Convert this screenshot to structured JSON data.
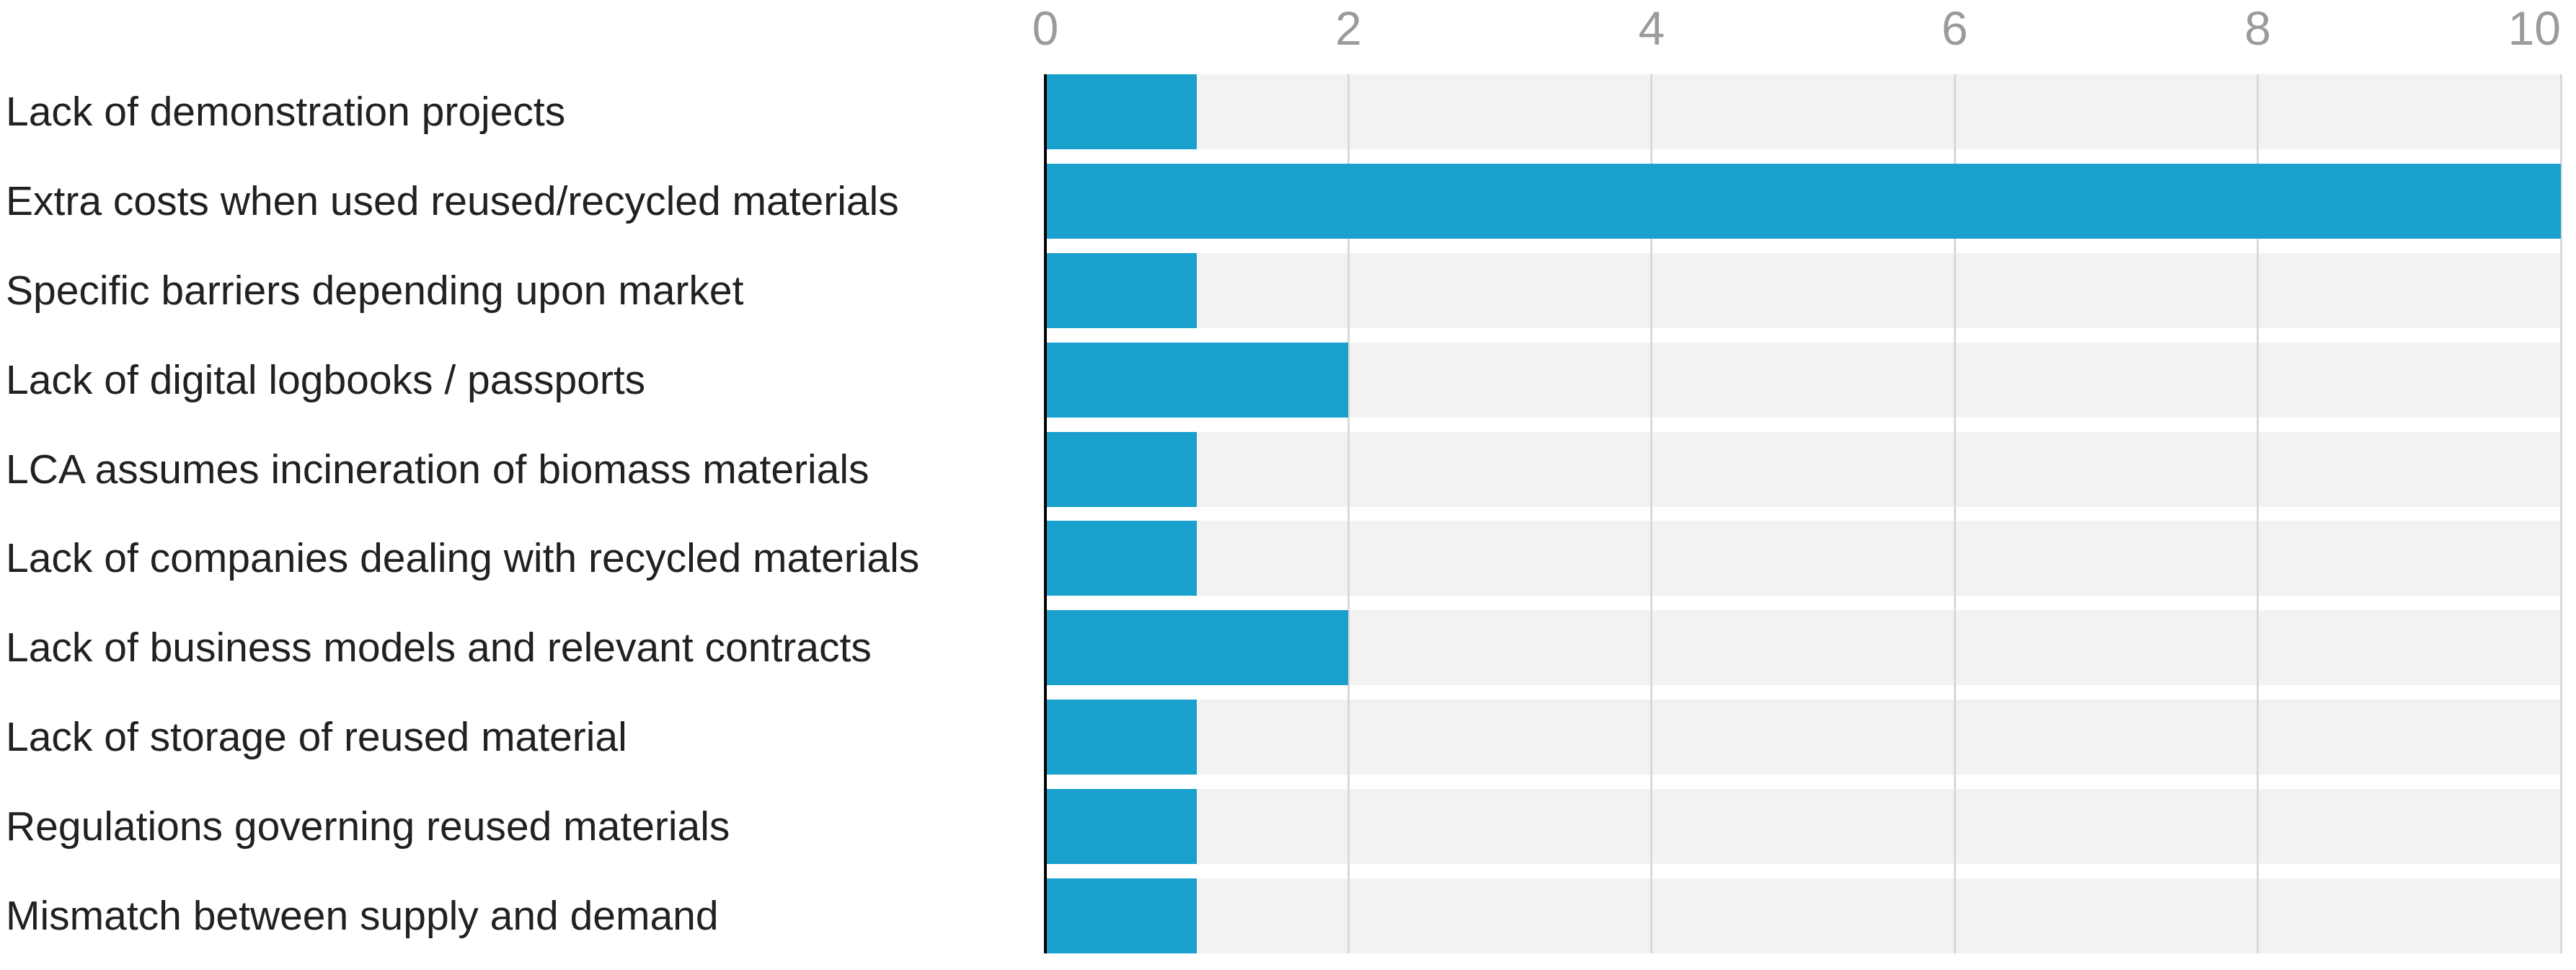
{
  "chart_data": {
    "type": "bar",
    "orientation": "horizontal",
    "title": "",
    "xlabel": "",
    "ylabel": "",
    "categories": [
      "Lack of demonstration projects",
      "Extra costs when used reused/recycled materials",
      "Specific barriers depending upon market",
      "Lack of digital logbooks / passports",
      "LCA assumes incineration of biomass materials",
      "Lack of companies dealing with recycled materials",
      "Lack of business models and relevant contracts",
      "Lack of storage of reused material",
      "Regulations governing reused materials",
      "Mismatch between supply and demand"
    ],
    "values": [
      1,
      10,
      1,
      2,
      1,
      1,
      2,
      1,
      1,
      1
    ],
    "xlim": [
      0,
      10
    ],
    "xticks": [
      0,
      2,
      4,
      6,
      8,
      10
    ],
    "tick_position": "top",
    "grid": true,
    "legend": "none",
    "colors": {
      "bar": "#1aa0cc",
      "row_band": "#f2f2f2",
      "gridline": "#d9d9d9",
      "axis_line": "#000000",
      "tick_label": "#9b9b9b",
      "category_label": "#212121",
      "background": "#ffffff"
    }
  }
}
